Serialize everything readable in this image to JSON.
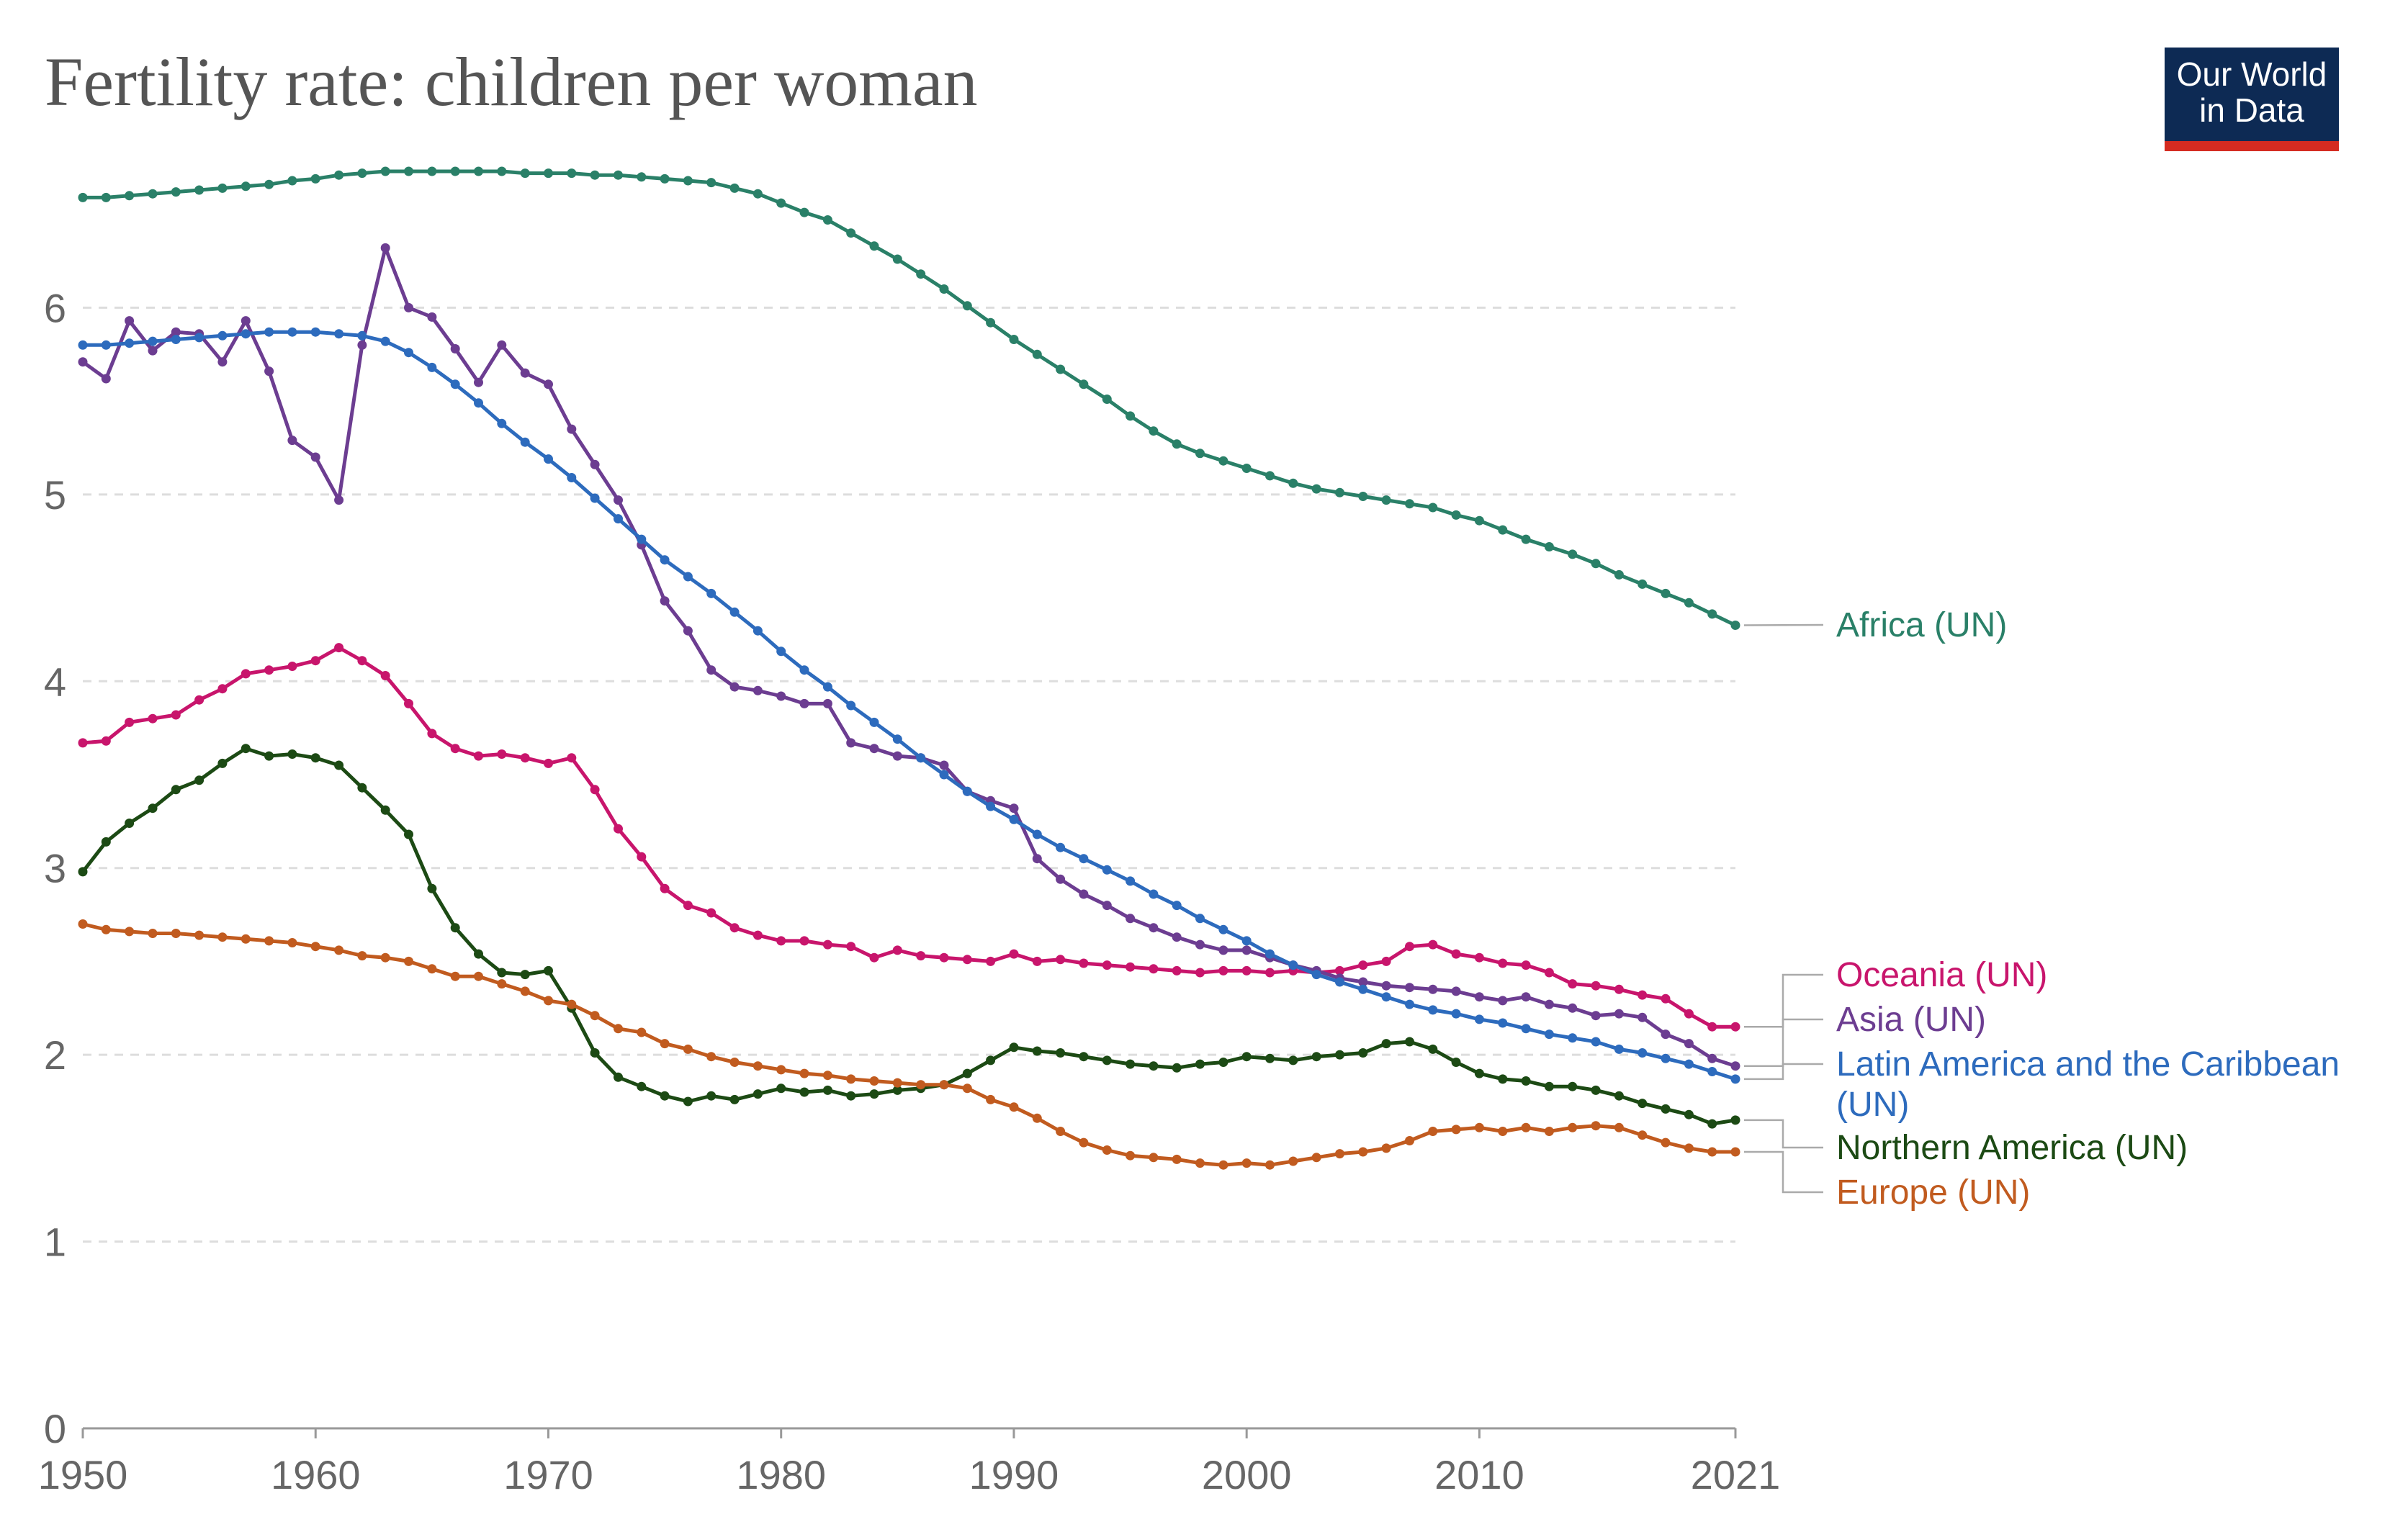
{
  "title": "Fertility rate: children per woman",
  "logo": {
    "line1": "Our World",
    "line2": "in Data",
    "bg_color": "#0d2a54",
    "accent_color": "#d42b21"
  },
  "chart_data": {
    "type": "line",
    "title": "Fertility rate: children per woman",
    "xlabel": "",
    "ylabel": "",
    "xlim": [
      1950,
      2021
    ],
    "ylim": [
      0,
      7
    ],
    "yticks": [
      0,
      1,
      2,
      3,
      4,
      5,
      6
    ],
    "xticks": [
      1950,
      1960,
      1970,
      1980,
      1990,
      2000,
      2010,
      2021
    ],
    "grid": true,
    "legend_placement": "right",
    "x": [
      1950,
      1951,
      1952,
      1953,
      1954,
      1955,
      1956,
      1957,
      1958,
      1959,
      1960,
      1961,
      1962,
      1963,
      1964,
      1965,
      1966,
      1967,
      1968,
      1969,
      1970,
      1971,
      1972,
      1973,
      1974,
      1975,
      1976,
      1977,
      1978,
      1979,
      1980,
      1981,
      1982,
      1983,
      1984,
      1985,
      1986,
      1987,
      1988,
      1989,
      1990,
      1991,
      1992,
      1993,
      1994,
      1995,
      1996,
      1997,
      1998,
      1999,
      2000,
      2001,
      2002,
      2003,
      2004,
      2005,
      2006,
      2007,
      2008,
      2009,
      2010,
      2011,
      2012,
      2013,
      2014,
      2015,
      2016,
      2017,
      2018,
      2019,
      2020,
      2021
    ],
    "series": [
      {
        "name": "Africa (UN)",
        "color": "#2a8068",
        "values": [
          6.59,
          6.59,
          6.6,
          6.61,
          6.62,
          6.63,
          6.64,
          6.65,
          6.66,
          6.68,
          6.69,
          6.71,
          6.72,
          6.73,
          6.73,
          6.73,
          6.73,
          6.73,
          6.73,
          6.72,
          6.72,
          6.72,
          6.71,
          6.71,
          6.7,
          6.69,
          6.68,
          6.67,
          6.64,
          6.61,
          6.56,
          6.51,
          6.47,
          6.4,
          6.33,
          6.26,
          6.18,
          6.1,
          6.01,
          5.92,
          5.83,
          5.75,
          5.67,
          5.59,
          5.51,
          5.42,
          5.34,
          5.27,
          5.22,
          5.18,
          5.14,
          5.1,
          5.06,
          5.03,
          5.01,
          4.99,
          4.97,
          4.95,
          4.93,
          4.89,
          4.86,
          4.81,
          4.76,
          4.72,
          4.68,
          4.63,
          4.57,
          4.52,
          4.47,
          4.42,
          4.36,
          4.3
        ]
      },
      {
        "name": "Oceania (UN)",
        "color": "#c8156c",
        "values": [
          3.67,
          3.68,
          3.78,
          3.8,
          3.82,
          3.9,
          3.96,
          4.04,
          4.06,
          4.08,
          4.11,
          4.18,
          4.11,
          4.03,
          3.88,
          3.72,
          3.64,
          3.6,
          3.61,
          3.59,
          3.56,
          3.59,
          3.42,
          3.21,
          3.06,
          2.89,
          2.8,
          2.76,
          2.68,
          2.64,
          2.61,
          2.61,
          2.59,
          2.58,
          2.52,
          2.56,
          2.53,
          2.52,
          2.51,
          2.5,
          2.54,
          2.5,
          2.51,
          2.49,
          2.48,
          2.47,
          2.46,
          2.45,
          2.44,
          2.45,
          2.45,
          2.44,
          2.45,
          2.44,
          2.45,
          2.48,
          2.5,
          2.58,
          2.59,
          2.54,
          2.52,
          2.49,
          2.48,
          2.44,
          2.38,
          2.37,
          2.35,
          2.32,
          2.3,
          2.22,
          2.15,
          2.15
        ]
      },
      {
        "name": "Asia (UN)",
        "color": "#6c3d91",
        "values": [
          5.71,
          5.62,
          5.93,
          5.77,
          5.87,
          5.86,
          5.71,
          5.93,
          5.66,
          5.29,
          5.2,
          4.97,
          5.8,
          6.32,
          6.0,
          5.95,
          5.78,
          5.6,
          5.8,
          5.65,
          5.59,
          5.35,
          5.16,
          4.97,
          4.73,
          4.43,
          4.27,
          4.06,
          3.97,
          3.95,
          3.92,
          3.88,
          3.88,
          3.67,
          3.64,
          3.6,
          3.59,
          3.55,
          3.41,
          3.36,
          3.32,
          3.05,
          2.94,
          2.86,
          2.8,
          2.73,
          2.68,
          2.63,
          2.59,
          2.56,
          2.56,
          2.52,
          2.48,
          2.45,
          2.41,
          2.39,
          2.37,
          2.36,
          2.35,
          2.34,
          2.31,
          2.29,
          2.31,
          2.27,
          2.25,
          2.21,
          2.22,
          2.2,
          2.11,
          2.06,
          1.98,
          1.94
        ]
      },
      {
        "name": "Latin America and the Caribbean (UN)",
        "color": "#2d6bbd",
        "values": [
          5.8,
          5.8,
          5.81,
          5.82,
          5.83,
          5.84,
          5.85,
          5.86,
          5.87,
          5.87,
          5.87,
          5.86,
          5.85,
          5.82,
          5.76,
          5.68,
          5.59,
          5.49,
          5.38,
          5.28,
          5.19,
          5.09,
          4.98,
          4.87,
          4.76,
          4.65,
          4.56,
          4.47,
          4.37,
          4.27,
          4.16,
          4.06,
          3.97,
          3.87,
          3.78,
          3.69,
          3.59,
          3.5,
          3.41,
          3.33,
          3.26,
          3.18,
          3.11,
          3.05,
          2.99,
          2.93,
          2.86,
          2.8,
          2.73,
          2.67,
          2.61,
          2.54,
          2.48,
          2.43,
          2.39,
          2.35,
          2.31,
          2.27,
          2.24,
          2.22,
          2.19,
          2.17,
          2.14,
          2.11,
          2.09,
          2.07,
          2.03,
          2.01,
          1.98,
          1.95,
          1.91,
          1.87
        ]
      },
      {
        "name": "Northern America (UN)",
        "color": "#1c4a14",
        "values": [
          2.98,
          3.14,
          3.24,
          3.32,
          3.42,
          3.47,
          3.56,
          3.64,
          3.6,
          3.61,
          3.59,
          3.55,
          3.43,
          3.31,
          3.18,
          2.89,
          2.68,
          2.54,
          2.44,
          2.43,
          2.45,
          2.25,
          2.01,
          1.88,
          1.83,
          1.78,
          1.75,
          1.78,
          1.76,
          1.79,
          1.82,
          1.8,
          1.81,
          1.78,
          1.79,
          1.81,
          1.82,
          1.84,
          1.9,
          1.97,
          2.04,
          2.02,
          2.01,
          1.99,
          1.97,
          1.95,
          1.94,
          1.93,
          1.95,
          1.96,
          1.99,
          1.98,
          1.97,
          1.99,
          2.0,
          2.01,
          2.06,
          2.07,
          2.03,
          1.96,
          1.9,
          1.87,
          1.86,
          1.83,
          1.83,
          1.81,
          1.78,
          1.74,
          1.71,
          1.68,
          1.63,
          1.65
        ]
      },
      {
        "name": "Europe (UN)",
        "color": "#c15b1f",
        "values": [
          2.7,
          2.67,
          2.66,
          2.65,
          2.65,
          2.64,
          2.63,
          2.62,
          2.61,
          2.6,
          2.58,
          2.56,
          2.53,
          2.52,
          2.5,
          2.46,
          2.42,
          2.42,
          2.38,
          2.34,
          2.29,
          2.27,
          2.21,
          2.14,
          2.12,
          2.06,
          2.03,
          1.99,
          1.96,
          1.94,
          1.92,
          1.9,
          1.89,
          1.87,
          1.86,
          1.85,
          1.84,
          1.84,
          1.82,
          1.76,
          1.72,
          1.66,
          1.59,
          1.53,
          1.49,
          1.46,
          1.45,
          1.44,
          1.42,
          1.41,
          1.42,
          1.41,
          1.43,
          1.45,
          1.47,
          1.48,
          1.5,
          1.54,
          1.59,
          1.6,
          1.61,
          1.59,
          1.61,
          1.59,
          1.61,
          1.62,
          1.61,
          1.57,
          1.53,
          1.5,
          1.48,
          1.48
        ]
      }
    ],
    "legend": [
      {
        "lines": [
          "Africa (UN)"
        ],
        "color": "#2a8068"
      },
      {
        "lines": [
          "Oceania (UN)"
        ],
        "color": "#c8156c"
      },
      {
        "lines": [
          "Asia (UN)"
        ],
        "color": "#6c3d91"
      },
      {
        "lines": [
          "Latin America and the Caribbean",
          "(UN)"
        ],
        "color": "#2d6bbd"
      },
      {
        "lines": [
          "Northern America (UN)"
        ],
        "color": "#1c4a14"
      },
      {
        "lines": [
          "Europe (UN)"
        ],
        "color": "#c15b1f"
      }
    ]
  }
}
